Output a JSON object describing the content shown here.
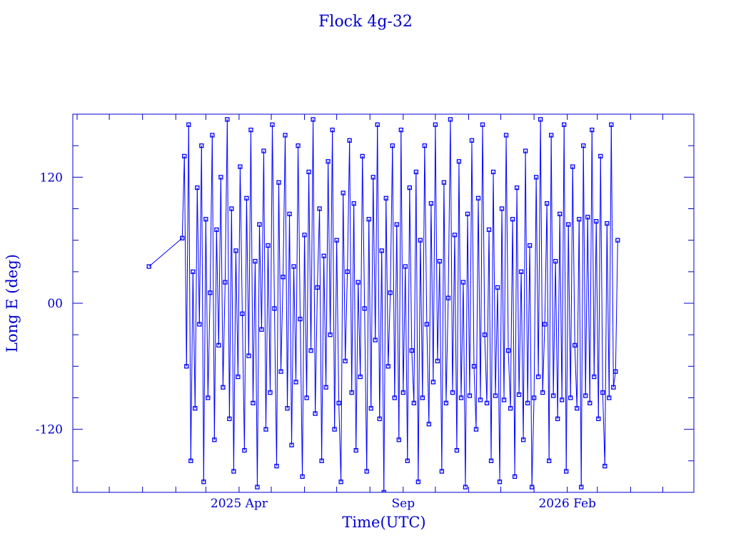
{
  "chart_data": {
    "type": "line",
    "title": "Flock 4g-32",
    "xlabel": "Time(UTC)",
    "ylabel": "Long E (deg)",
    "xlim": [
      "2024-10-28",
      "2026-05-30"
    ],
    "ylim": [
      -180,
      180
    ],
    "grid": false,
    "marker": "open-square",
    "color": "#0000ff",
    "axis_color": "#0000cc",
    "x_tick_labels": [
      {
        "date": "2025-04-01",
        "label": "2025 Apr"
      },
      {
        "date": "2025-09-01",
        "label": "Sep"
      },
      {
        "date": "2026-02-01",
        "label": "2026 Feb"
      }
    ],
    "y_tick_labels": [
      {
        "value": 120,
        "label": "120"
      },
      {
        "value": 0,
        "label": "00"
      },
      {
        "value": -120,
        "label": "-120"
      }
    ],
    "x": [
      "2025-01-07",
      "2025-02-07",
      "2025-02-09",
      "2025-02-11",
      "2025-02-13",
      "2025-02-15",
      "2025-02-17",
      "2025-02-19",
      "2025-02-21",
      "2025-02-23",
      "2025-02-25",
      "2025-02-27",
      "2025-03-01",
      "2025-03-03",
      "2025-03-05",
      "2025-03-07",
      "2025-03-09",
      "2025-03-11",
      "2025-03-13",
      "2025-03-15",
      "2025-03-17",
      "2025-03-19",
      "2025-03-21",
      "2025-03-23",
      "2025-03-25",
      "2025-03-27",
      "2025-03-29",
      "2025-03-31",
      "2025-04-02",
      "2025-04-04",
      "2025-04-06",
      "2025-04-08",
      "2025-04-10",
      "2025-04-12",
      "2025-04-14",
      "2025-04-16",
      "2025-04-18",
      "2025-04-20",
      "2025-04-22",
      "2025-04-24",
      "2025-04-26",
      "2025-04-28",
      "2025-04-30",
      "2025-05-02",
      "2025-05-04",
      "2025-05-06",
      "2025-05-08",
      "2025-05-10",
      "2025-05-12",
      "2025-05-14",
      "2025-05-16",
      "2025-05-18",
      "2025-05-20",
      "2025-05-22",
      "2025-05-24",
      "2025-05-26",
      "2025-05-28",
      "2025-05-30",
      "2025-06-01",
      "2025-06-03",
      "2025-06-05",
      "2025-06-07",
      "2025-06-09",
      "2025-06-11",
      "2025-06-13",
      "2025-06-15",
      "2025-06-17",
      "2025-06-19",
      "2025-06-21",
      "2025-06-23",
      "2025-06-25",
      "2025-06-27",
      "2025-06-29",
      "2025-07-01",
      "2025-07-03",
      "2025-07-05",
      "2025-07-07",
      "2025-07-09",
      "2025-07-11",
      "2025-07-13",
      "2025-07-15",
      "2025-07-17",
      "2025-07-19",
      "2025-07-21",
      "2025-07-23",
      "2025-07-25",
      "2025-07-27",
      "2025-07-29",
      "2025-07-31",
      "2025-08-02",
      "2025-08-04",
      "2025-08-06",
      "2025-08-08",
      "2025-08-10",
      "2025-08-12",
      "2025-08-14",
      "2025-08-16",
      "2025-08-18",
      "2025-08-20",
      "2025-08-22",
      "2025-08-24",
      "2025-08-26",
      "2025-08-28",
      "2025-08-30",
      "2025-09-01",
      "2025-09-03",
      "2025-09-05",
      "2025-09-07",
      "2025-09-09",
      "2025-09-11",
      "2025-09-13",
      "2025-09-15",
      "2025-09-17",
      "2025-09-19",
      "2025-09-21",
      "2025-09-23",
      "2025-09-25",
      "2025-09-27",
      "2025-09-29",
      "2025-10-01",
      "2025-10-03",
      "2025-10-05",
      "2025-10-07",
      "2025-10-09",
      "2025-10-11",
      "2025-10-13",
      "2025-10-15",
      "2025-10-17",
      "2025-10-19",
      "2025-10-21",
      "2025-10-23",
      "2025-10-25",
      "2025-10-27",
      "2025-10-29",
      "2025-10-31",
      "2025-11-02",
      "2025-11-04",
      "2025-11-06",
      "2025-11-08",
      "2025-11-10",
      "2025-11-12",
      "2025-11-14",
      "2025-11-16",
      "2025-11-18",
      "2025-11-20",
      "2025-11-22",
      "2025-11-24",
      "2025-11-26",
      "2025-11-28",
      "2025-11-30",
      "2025-12-02",
      "2025-12-04",
      "2025-12-06",
      "2025-12-08",
      "2025-12-10",
      "2025-12-12",
      "2025-12-14",
      "2025-12-16",
      "2025-12-18",
      "2025-12-20",
      "2025-12-22",
      "2025-12-24",
      "2025-12-26",
      "2025-12-28",
      "2025-12-30",
      "2026-01-01",
      "2026-01-03",
      "2026-01-05",
      "2026-01-07",
      "2026-01-09",
      "2026-01-11",
      "2026-01-13",
      "2026-01-15",
      "2026-01-17",
      "2026-01-19",
      "2026-01-21",
      "2026-01-23",
      "2026-01-25",
      "2026-01-27",
      "2026-01-29",
      "2026-01-31",
      "2026-02-02",
      "2026-02-04",
      "2026-02-06",
      "2026-02-08",
      "2026-02-10",
      "2026-02-12",
      "2026-02-14",
      "2026-02-16",
      "2026-02-18",
      "2026-02-20",
      "2026-02-22",
      "2026-02-24",
      "2026-02-26",
      "2026-02-28",
      "2026-03-02",
      "2026-03-04",
      "2026-03-06",
      "2026-03-08",
      "2026-03-10",
      "2026-03-12",
      "2026-03-14",
      "2026-03-16",
      "2026-03-18",
      "2026-03-20"
    ],
    "y": [
      35,
      62,
      140,
      -60,
      170,
      -150,
      30,
      -100,
      110,
      -20,
      150,
      -170,
      80,
      -90,
      10,
      160,
      -130,
      70,
      -40,
      120,
      -80,
      20,
      175,
      -110,
      90,
      -160,
      50,
      -70,
      130,
      -10,
      -140,
      100,
      -50,
      165,
      -95,
      40,
      -175,
      75,
      -25,
      145,
      -120,
      55,
      -85,
      170,
      -5,
      -155,
      115,
      -65,
      25,
      160,
      -100,
      85,
      -135,
      35,
      -75,
      150,
      -15,
      -165,
      65,
      -90,
      125,
      -45,
      175,
      -105,
      15,
      90,
      -150,
      45,
      -80,
      135,
      -30,
      165,
      -120,
      60,
      -95,
      -170,
      105,
      -55,
      30,
      155,
      -85,
      95,
      -140,
      20,
      -70,
      140,
      -5,
      -160,
      80,
      -100,
      120,
      -35,
      170,
      -110,
      50,
      -180,
      100,
      -60,
      10,
      150,
      -90,
      75,
      -130,
      165,
      -85,
      35,
      -150,
      110,
      -45,
      -95,
      125,
      -170,
      60,
      -90,
      150,
      -20,
      -115,
      95,
      -75,
      170,
      -55,
      40,
      -160,
      115,
      -95,
      5,
      175,
      -85,
      65,
      -140,
      135,
      -90,
      20,
      -175,
      85,
      -88,
      155,
      -60,
      -120,
      100,
      -92,
      170,
      -30,
      -95,
      70,
      -150,
      125,
      -88,
      15,
      -170,
      90,
      -92,
      160,
      -45,
      -100,
      80,
      -165,
      110,
      -87,
      30,
      -130,
      145,
      -95,
      55,
      -175,
      -90,
      120,
      -70,
      175,
      -85,
      -20,
      95,
      -150,
      160,
      -88,
      40,
      -110,
      85,
      -92,
      170,
      -160,
      75,
      -90,
      130,
      -40,
      -100,
      80,
      -175,
      150,
      -88,
      82,
      -95,
      165,
      -70,
      78,
      -110,
      140,
      -85,
      -155,
      76,
      -90,
      170,
      -80,
      -65,
      60
    ]
  }
}
